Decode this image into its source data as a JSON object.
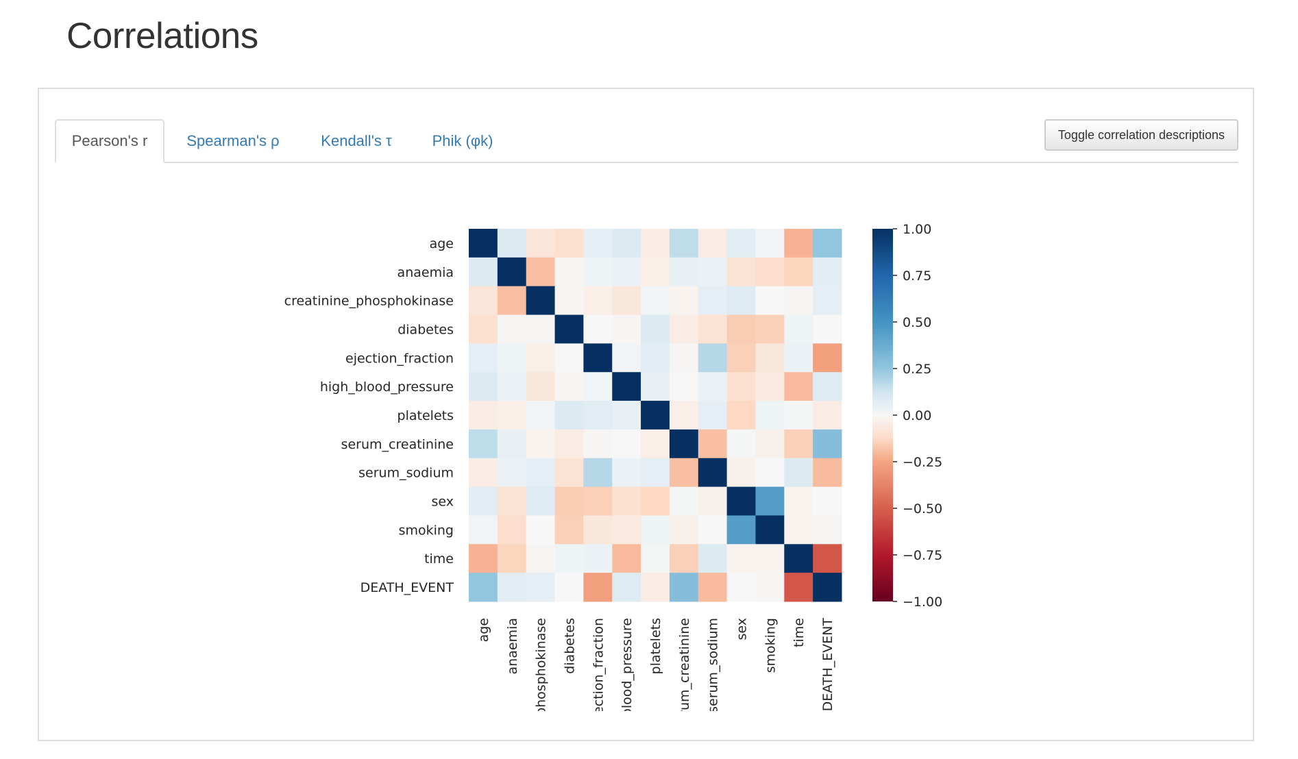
{
  "page": {
    "title": "Correlations"
  },
  "tabs": [
    {
      "label": "Pearson's r",
      "active": true
    },
    {
      "label": "Spearman's ρ",
      "active": false
    },
    {
      "label": "Kendall's τ",
      "active": false
    },
    {
      "label": "Phik (φk)",
      "active": false
    }
  ],
  "toggle_button": {
    "label": "Toggle correlation descriptions"
  },
  "colors": {
    "link": "#337ab7",
    "tab_border": "#dddddd",
    "diverging_low": "#67001f",
    "diverging_mid": "#f7f7f7",
    "diverging_high": "#053061"
  },
  "chart_data": {
    "type": "heatmap",
    "colormap": "RdBu",
    "vmin": -1.0,
    "vmax": 1.0,
    "row_labels": [
      "age",
      "anaemia",
      "creatinine_phosphokinase",
      "diabetes",
      "ejection_fraction",
      "high_blood_pressure",
      "platelets",
      "serum_creatinine",
      "serum_sodium",
      "sex",
      "smoking",
      "time",
      "DEATH_EVENT"
    ],
    "col_labels": [
      "age",
      "anaemia",
      "phosphokinase",
      "diabetes",
      "ejection_fraction",
      "blood_pressure",
      "platelets",
      "erum_creatinine",
      "serum_sodium",
      "sex",
      "smoking",
      "time",
      "DEATH_EVENT"
    ],
    "values": [
      [
        1.0,
        0.09,
        -0.08,
        -0.1,
        0.06,
        0.09,
        -0.05,
        0.16,
        -0.05,
        0.07,
        0.02,
        -0.22,
        0.25
      ],
      [
        0.09,
        1.0,
        -0.19,
        -0.01,
        0.03,
        0.04,
        -0.04,
        0.05,
        0.04,
        -0.09,
        -0.11,
        -0.14,
        0.07
      ],
      [
        -0.08,
        -0.19,
        1.0,
        -0.01,
        -0.04,
        -0.07,
        0.02,
        -0.02,
        0.06,
        0.08,
        -0.0,
        -0.01,
        0.06
      ],
      [
        -0.1,
        -0.01,
        -0.01,
        1.0,
        -0.0,
        -0.01,
        0.09,
        -0.05,
        -0.09,
        -0.16,
        -0.15,
        0.03,
        -0.0
      ],
      [
        0.06,
        0.03,
        -0.04,
        -0.0,
        1.0,
        0.02,
        0.07,
        -0.01,
        0.18,
        -0.15,
        -0.07,
        0.04,
        -0.27
      ],
      [
        0.09,
        0.04,
        -0.07,
        -0.01,
        0.02,
        1.0,
        0.05,
        -0.0,
        0.04,
        -0.1,
        -0.06,
        -0.2,
        0.08
      ],
      [
        -0.05,
        -0.04,
        0.02,
        0.09,
        0.07,
        0.05,
        1.0,
        -0.04,
        0.06,
        -0.13,
        0.03,
        0.01,
        -0.05
      ],
      [
        0.16,
        0.05,
        -0.02,
        -0.05,
        -0.01,
        -0.0,
        -0.04,
        1.0,
        -0.19,
        0.01,
        -0.03,
        -0.15,
        0.29
      ],
      [
        -0.05,
        0.04,
        0.06,
        -0.09,
        0.18,
        0.04,
        0.06,
        -0.19,
        1.0,
        -0.03,
        0.0,
        0.09,
        -0.2
      ],
      [
        0.07,
        -0.09,
        0.08,
        -0.16,
        -0.15,
        -0.1,
        -0.13,
        0.01,
        -0.03,
        1.0,
        0.45,
        -0.02,
        -0.0
      ],
      [
        0.02,
        -0.11,
        -0.0,
        -0.15,
        -0.07,
        -0.06,
        0.03,
        -0.03,
        0.0,
        0.45,
        1.0,
        -0.02,
        -0.01
      ],
      [
        -0.22,
        -0.14,
        -0.01,
        0.03,
        0.04,
        -0.2,
        0.01,
        -0.15,
        0.09,
        -0.02,
        -0.02,
        1.0,
        -0.53
      ],
      [
        0.25,
        0.07,
        0.06,
        -0.0,
        -0.27,
        0.08,
        -0.05,
        0.29,
        -0.2,
        -0.0,
        -0.01,
        -0.53,
        1.0
      ]
    ],
    "colorbar_ticks": [
      1.0,
      0.75,
      0.5,
      0.25,
      0.0,
      -0.25,
      -0.5,
      -0.75,
      -1.0
    ],
    "colorbar_tick_labels": [
      "1.00",
      "0.75",
      "0.50",
      "0.25",
      "0.00",
      "−0.25",
      "−0.50",
      "−0.75",
      "−1.00"
    ]
  }
}
